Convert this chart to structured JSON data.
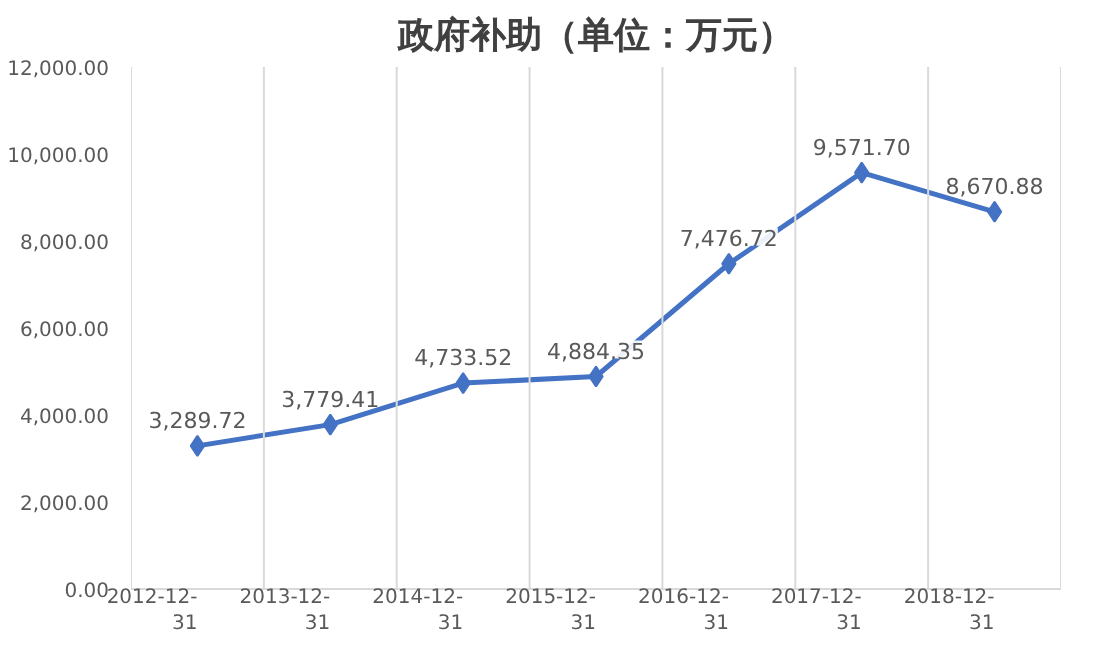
{
  "chart_data": {
    "type": "line",
    "title": "政府补助（单位：万元）",
    "categories": [
      "2012-12-31",
      "2013-12-31",
      "2014-12-31",
      "2015-12-31",
      "2016-12-31",
      "2017-12-31",
      "2018-12-31"
    ],
    "values": [
      3289.72,
      3779.41,
      4733.52,
      4884.35,
      7476.72,
      9571.7,
      8670.88
    ],
    "value_labels": [
      "3,289.72",
      "3,779.41",
      "4,733.52",
      "4,884.35",
      "7,476.72",
      "9,571.70",
      "8,670.88"
    ],
    "color": "#4472c4",
    "marker": "diamond",
    "line_style": "solid",
    "grid": "x",
    "ylim": [
      0,
      12000
    ],
    "yticks": [
      {
        "value": 0,
        "label": "0.00"
      },
      {
        "value": 2000,
        "label": "2,000.00"
      },
      {
        "value": 4000,
        "label": "4,000.00"
      },
      {
        "value": 6000,
        "label": "6,000.00"
      },
      {
        "value": 8000,
        "label": "8,000.00"
      },
      {
        "value": 10000,
        "label": "10,000.00"
      },
      {
        "value": 12000,
        "label": "12,000.00"
      }
    ]
  }
}
